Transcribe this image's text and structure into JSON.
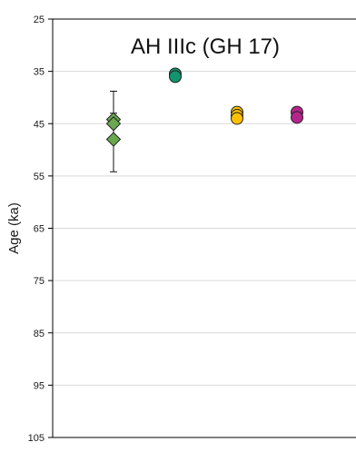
{
  "chart_data": {
    "type": "scatter",
    "title": "AH IIIc (GH 17)",
    "xlabel": "",
    "ylabel": "Age (ka)",
    "ylim": [
      25,
      105
    ],
    "y_inverted": true,
    "yticks": [
      25,
      35,
      45,
      55,
      65,
      75,
      85,
      95,
      105
    ],
    "grid": "horizontal",
    "legend": "none",
    "series": [
      {
        "marker": "diamond",
        "color": "#6aa84f",
        "column": 1,
        "points": [
          {
            "y": 44.2,
            "err_low": 44.2,
            "err_high": 43.0
          },
          {
            "y": 45.0
          },
          {
            "y": 48.0,
            "err_low": 38.8,
            "err_high": 54.2
          }
        ]
      },
      {
        "marker": "circle",
        "color": "#12946f",
        "column": 2,
        "points": [
          {
            "y": 35.5
          },
          {
            "y": 36.0
          }
        ]
      },
      {
        "marker": "circle",
        "color": "#ffc000",
        "column": 3,
        "points": [
          {
            "y": 42.8
          },
          {
            "y": 43.4
          },
          {
            "y": 44.0
          }
        ]
      },
      {
        "marker": "circle",
        "color": "#b4258a",
        "column": 4,
        "points": [
          {
            "y": 42.8
          },
          {
            "y": 43.8
          }
        ]
      }
    ]
  }
}
